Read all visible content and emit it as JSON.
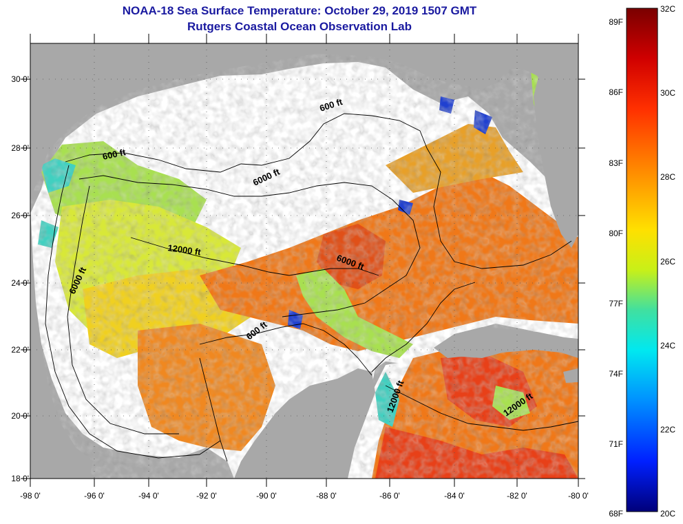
{
  "title": "NOAA-18 Sea Surface Temperature:  October 29, 2019 1507 GMT",
  "subtitle": "Rutgers Coastal Ocean Observation Lab",
  "map": {
    "lon_ticks": [
      "-98 0'",
      "-96 0'",
      "-94 0'",
      "-92 0'",
      "-90 0'",
      "-88 0'",
      "-86 0'",
      "-84 0'",
      "-82 0'",
      "-80 0'"
    ],
    "lat_ticks": [
      "30 0'",
      "28 0'",
      "26 0'",
      "24 0'",
      "22 0'",
      "20 0'",
      "18 0'"
    ],
    "contour_labels": [
      "600 ft",
      "600 ft",
      "600 ft",
      "6000 ft",
      "6000 ft",
      "6000 ft",
      "12000 ft",
      "12000 ft",
      "12000 ft"
    ],
    "colors": {
      "land": "#a8a8a8",
      "nodata": "#ffffff",
      "warm": "#f07818",
      "hot": "#e84018",
      "mid": "#f0c020",
      "green": "#a8e050",
      "cyan": "#40d0c0",
      "blue": "#2040d0"
    }
  },
  "colorbar": {
    "f_labels": [
      "89F",
      "86F",
      "83F",
      "80F",
      "77F",
      "74F",
      "71F",
      "68F"
    ],
    "c_labels": [
      "32C",
      "30C",
      "28C",
      "26C",
      "24C",
      "22C",
      "20C"
    ],
    "stops": [
      "#7a0000",
      "#e01010",
      "#ff7000",
      "#ffd000",
      "#d8f010",
      "#40e0a0",
      "#00e0f0",
      "#0090ff",
      "#0020ff",
      "#00007a"
    ]
  }
}
